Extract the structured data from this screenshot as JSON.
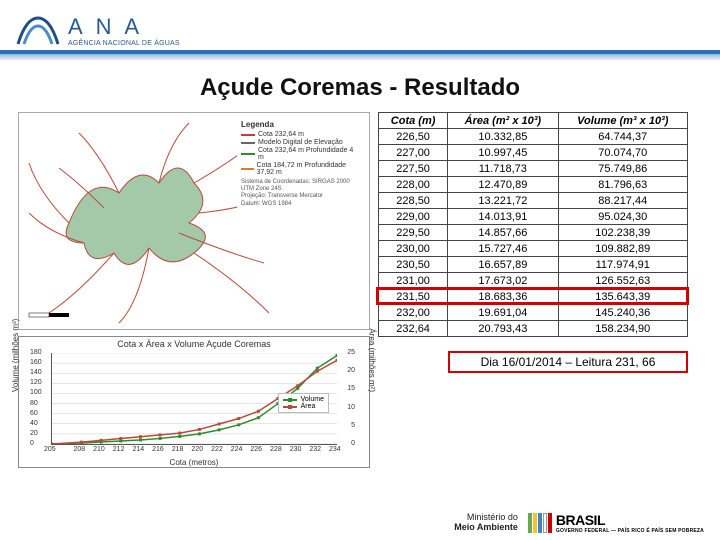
{
  "header": {
    "org_short": "A N A",
    "org_full": "AGÊNCIA NACIONAL DE ÁGUAS",
    "logo_colors": {
      "dark_blue": "#1e4f82",
      "light_blue": "#4a8cc9",
      "text": "#2a5a8f"
    }
  },
  "title": "Açude Coremas - Resultado",
  "map": {
    "legend_title": "Legenda",
    "items": [
      {
        "label": "Cota 232,64 m",
        "color": "#c23a3a"
      },
      {
        "label": "Modelo Digital de Elevação",
        "color": "#666666"
      },
      {
        "label": "Cota 232,64 m Profundidade 4 m",
        "color": "#2e8b2e"
      },
      {
        "label": "Cota 184,72 m Profundidade 37,92 m",
        "color": "#e07b2a"
      }
    ],
    "credits": [
      "Sistema de Coordenadas: SIRGAS 2000 UTM Zone 24S",
      "Projeção: Transverse Mercator",
      "Datum: WGS 1984"
    ],
    "water_fill": "#a3c9a8",
    "water_stroke": "#b84a39",
    "background": "#ffffff"
  },
  "chart": {
    "title": "Cota x Área x Volume Açude Coremas",
    "x_label": "Cota (metros)",
    "y_left_label": "Volume (milhões m³)",
    "y_right_label": "Área (milhões m²)",
    "x_ticks": [
      205,
      208,
      210,
      212,
      214,
      216,
      218,
      220,
      222,
      224,
      226,
      228,
      230,
      232,
      234
    ],
    "y_left_ticks": [
      0,
      20,
      40,
      60,
      80,
      100,
      120,
      140,
      160,
      180
    ],
    "y_right_ticks": [
      0,
      5,
      10,
      15,
      20,
      25
    ],
    "x": [
      205,
      208,
      210,
      212,
      214,
      216,
      218,
      220,
      222,
      224,
      226,
      228,
      230,
      232,
      234
    ],
    "volume": [
      0,
      2,
      4,
      6,
      8,
      11,
      15,
      20,
      28,
      38,
      52,
      80,
      110,
      150,
      175
    ],
    "area": [
      0,
      0.5,
      1,
      1.5,
      2,
      2.5,
      3,
      4,
      5.5,
      7,
      9,
      12.5,
      16,
      20,
      23
    ],
    "colors": {
      "volume": "#2e8b2e",
      "area": "#b84a39",
      "grid": "#cccccc",
      "axis": "#555555",
      "bg": "#ffffff"
    },
    "marker": "square",
    "marker_size": 3,
    "line_width": 1.5
  },
  "table": {
    "headers": [
      "Cota (m)",
      "Área (m² x 10³)",
      "Volume (m³ x 10³)"
    ],
    "rows": [
      [
        "226,50",
        "10.332,85",
        "64.744,37"
      ],
      [
        "227,00",
        "10.997,45",
        "70.074,70"
      ],
      [
        "227,50",
        "11.718,73",
        "75.749,86"
      ],
      [
        "228,00",
        "12.470,89",
        "81.796,63"
      ],
      [
        "228,50",
        "13.221,72",
        "88.217,44"
      ],
      [
        "229,00",
        "14.013,91",
        "95.024,30"
      ],
      [
        "229,50",
        "14.857,66",
        "102.238,39"
      ],
      [
        "230,00",
        "15.727,46",
        "109.882,89"
      ],
      [
        "230,50",
        "16.657,89",
        "117.974,91"
      ],
      [
        "231,00",
        "17.673,02",
        "126.552,63"
      ],
      [
        "231,50",
        "18.683,36",
        "135.643,39"
      ],
      [
        "232,00",
        "19.691,04",
        "145.240,36"
      ],
      [
        "232,64",
        "20.793,43",
        "158.234,90"
      ]
    ],
    "highlight_row_index": 10,
    "highlight_color": "#d40000"
  },
  "reading": {
    "text": "Dia 16/01/2014 – Leitura 231, 66",
    "border_color": "#d40000"
  },
  "footer": {
    "ministry_line1": "Ministério do",
    "ministry_line2": "Meio Ambiente",
    "brasil": "BRASIL",
    "slogan": "GOVERNO FEDERAL — PAÍS RICO É PAÍS SEM POBREZA",
    "bar_colors": [
      "#6aa84f",
      "#f1c232",
      "#3d85c6",
      "#ffffff",
      "#cc0000"
    ]
  }
}
